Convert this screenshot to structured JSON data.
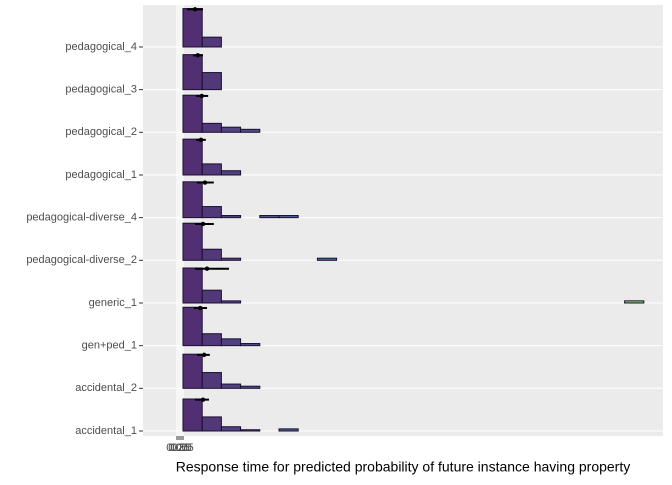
{
  "chart_data": {
    "type": "ridgeline_histogram",
    "x_label": "Response time for predicted probability of future instance having property",
    "xlim": [
      -4.25,
      60.75
    ],
    "xticks": [
      {
        "value": 0,
        "label": "0.00"
      },
      {
        "value": 0.25,
        "label": "0.25"
      },
      {
        "value": 0.5,
        "label": "0.50"
      },
      {
        "value": 0.75,
        "label": "0.75"
      }
    ],
    "bins": [
      0.75,
      3.15,
      5.55,
      7.95,
      10.35,
      12.75,
      15.15,
      17.55,
      19.95,
      22.35,
      24.75,
      27.15,
      29.55,
      31.95,
      34.35,
      36.75,
      39.15,
      41.55,
      43.95,
      46.35,
      48.75,
      51.15,
      53.55,
      55.95,
      58.35
    ],
    "colormap": "viridis",
    "grid": true,
    "series": [
      {
        "name": "accidental_1",
        "counts": [
          0.75,
          0.33,
          0.1,
          0.03,
          0,
          0.05,
          0,
          0,
          0,
          0,
          0,
          0,
          0,
          0,
          0,
          0,
          0,
          0,
          0,
          0,
          0,
          0,
          0,
          0
        ],
        "mean": 3.25,
        "low": 2.25,
        "high": 4.0
      },
      {
        "name": "accidental_2",
        "counts": [
          0.8,
          0.37,
          0.1,
          0.05,
          0,
          0,
          0,
          0,
          0,
          0,
          0,
          0,
          0,
          0,
          0,
          0,
          0,
          0,
          0,
          0,
          0,
          0,
          0,
          0
        ],
        "mean": 3.4,
        "low": 2.5,
        "high": 4.1
      },
      {
        "name": "gen+ped_1",
        "counts": [
          0.9,
          0.28,
          0.16,
          0.05,
          0,
          0,
          0,
          0,
          0,
          0,
          0,
          0,
          0,
          0,
          0,
          0,
          0,
          0,
          0,
          0,
          0,
          0,
          0,
          0
        ],
        "mean": 2.9,
        "low": 2.1,
        "high": 3.75
      },
      {
        "name": "generic_1",
        "counts": [
          0.82,
          0.3,
          0.05,
          0,
          0,
          0,
          0,
          0,
          0,
          0,
          0,
          0,
          0,
          0,
          0,
          0,
          0,
          0,
          0,
          0,
          0,
          0,
          0,
          0.05
        ],
        "mean": 3.75,
        "low": 2.25,
        "high": 6.5
      },
      {
        "name": "pedagogical-diverse_2",
        "counts": [
          0.87,
          0.26,
          0.05,
          0,
          0,
          0,
          0,
          0.05,
          0,
          0,
          0,
          0,
          0,
          0,
          0,
          0,
          0,
          0,
          0,
          0,
          0,
          0,
          0,
          0
        ],
        "mean": 3.25,
        "low": 2.25,
        "high": 4.6
      },
      {
        "name": "pedagogical-diverse_4",
        "counts": [
          0.84,
          0.26,
          0.05,
          0,
          0.05,
          0.05,
          0,
          0,
          0,
          0,
          0,
          0,
          0,
          0,
          0,
          0,
          0,
          0,
          0,
          0,
          0,
          0,
          0,
          0
        ],
        "mean": 3.5,
        "low": 2.5,
        "high": 4.6
      },
      {
        "name": "pedagogical_1",
        "counts": [
          0.84,
          0.26,
          0.1,
          0,
          0,
          0,
          0,
          0,
          0,
          0,
          0,
          0,
          0,
          0,
          0,
          0,
          0,
          0,
          0,
          0,
          0,
          0,
          0,
          0
        ],
        "mean": 3.0,
        "low": 2.4,
        "high": 3.6
      },
      {
        "name": "pedagogical_2",
        "counts": [
          0.87,
          0.21,
          0.12,
          0.07,
          0,
          0,
          0,
          0,
          0,
          0,
          0,
          0,
          0,
          0,
          0,
          0,
          0,
          0,
          0,
          0,
          0,
          0,
          0,
          0
        ],
        "mean": 3.1,
        "low": 2.4,
        "high": 3.9
      },
      {
        "name": "pedagogical_3",
        "counts": [
          0.82,
          0.4,
          0,
          0,
          0,
          0,
          0,
          0,
          0,
          0,
          0,
          0,
          0,
          0,
          0,
          0,
          0,
          0,
          0,
          0,
          0,
          0,
          0,
          0
        ],
        "mean": 2.6,
        "low": 2.0,
        "high": 3.25
      },
      {
        "name": "pedagogical_4",
        "counts": [
          0.9,
          0.23,
          0,
          0,
          0,
          0,
          0,
          0,
          0,
          0,
          0,
          0,
          0,
          0,
          0,
          0,
          0,
          0,
          0,
          0,
          0,
          0,
          0,
          0
        ],
        "mean": 2.25,
        "low": 1.25,
        "high": 3.25
      }
    ]
  }
}
